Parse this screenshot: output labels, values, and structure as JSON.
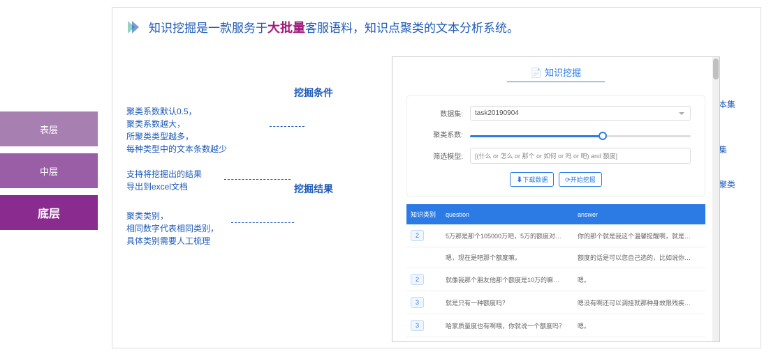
{
  "colors": {
    "sidebar_top": "#a77fb0",
    "sidebar_mid": "#9a5ea6",
    "sidebar_bottom": "#8a2b90",
    "accent_blue": "#1e5ab8",
    "accent_magenta": "#a1197d",
    "app_blue": "#2c7be5",
    "chevron_teal": "#2aa38f",
    "chevron_blue": "#1e5ab8"
  },
  "sidebar": {
    "items": [
      {
        "label": "表层"
      },
      {
        "label": "中层"
      },
      {
        "label": "底层"
      }
    ]
  },
  "header": {
    "prefix": "知识挖掘是一款服务于",
    "highlight": "大批量",
    "suffix": "客服语料，知识点聚类的文本分析系统。"
  },
  "labels": {
    "section_conditions": "挖掘条件",
    "section_results": "挖掘结果",
    "app_title": "知识挖掘"
  },
  "annotations": {
    "left1": "聚类系数默认0.5，\n聚类系数越大，\n所聚类类型越多，\n每种类型中的文本条数越少",
    "left2": "支持将挖掘出的结果\n导出到excel文档",
    "left3": "聚类类别，\n相同数字代表相同类别，\n具体类别需要人工梳理",
    "right1": "导入需要被分析的文本集",
    "right2": "千寻模型对整个文本集\n做初步筛选",
    "right3": "对筛选后的文本自动聚类"
  },
  "conditions": {
    "dataset_label": "数据集:",
    "dataset_value": "task20190904",
    "coef_label": "聚类系数:",
    "coef_value": 0.5,
    "coef_slider_pct": 60,
    "filter_label": "筛选模型:",
    "filter_value": "[(什么 or 怎么 or 那个 or 如何 or 吗 or 吧) and 额度]"
  },
  "actions": {
    "download": "⬇下载数据",
    "start": "⟳开始挖掘"
  },
  "table": {
    "columns": [
      "知识类别",
      "question",
      "answer"
    ],
    "rows": [
      {
        "cat": "2",
        "q": "5万那是那个105000万吧，5万的额度对…",
        "a": "你的那个就是我这个温馨提醒啊，就是…"
      },
      {
        "cat": "",
        "q": "嗯，现在是吧那个额度嘛。",
        "a": "额度的话是可以您自己选的，比如说你…"
      },
      {
        "cat": "2",
        "q": "就像我那个朋友他那个额度是10万的嘛…",
        "a": "嗯。"
      },
      {
        "cat": "3",
        "q": "就是只有一种额度吗？",
        "a": "嗯没有啊还可以调挂就那种身故限残疾…"
      },
      {
        "cat": "3",
        "q": "哈家质量度也有啊喂，你就说一个额度吗？",
        "a": "嗯。"
      }
    ]
  }
}
